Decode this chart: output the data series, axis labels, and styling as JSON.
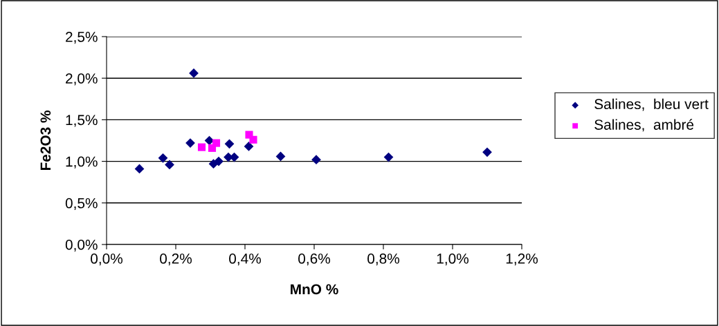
{
  "chart_data": {
    "type": "scatter",
    "xlabel": "MnO %",
    "ylabel": "Fe2O3 %",
    "series": [
      {
        "name": "Salines,  bleu vert",
        "color": "#000080",
        "marker": "diamond",
        "x": [
          0.095,
          0.163,
          0.182,
          0.242,
          0.252,
          0.297,
          0.309,
          0.324,
          0.355,
          0.352,
          0.369,
          0.411,
          0.503,
          0.606,
          0.815,
          1.1
        ],
        "values": [
          0.91,
          1.04,
          0.96,
          1.22,
          2.06,
          1.25,
          0.97,
          1.0,
          1.21,
          1.05,
          1.05,
          1.18,
          1.06,
          1.02,
          1.05,
          1.11
        ]
      },
      {
        "name": "Salines,  ambré",
        "color": "#ff00ff",
        "marker": "square",
        "x": [
          0.275,
          0.305,
          0.317,
          0.412,
          0.424
        ],
        "values": [
          1.17,
          1.16,
          1.22,
          1.32,
          1.26
        ]
      }
    ],
    "xlim": [
      0,
      1.2
    ],
    "xticks": [
      {
        "value": 0,
        "label": "0,0%"
      },
      {
        "value": 0.2,
        "label": "0,2%"
      },
      {
        "value": 0.4,
        "label": "0,4%"
      },
      {
        "value": 0.6,
        "label": "0,6%"
      },
      {
        "value": 0.8,
        "label": "0,8%"
      },
      {
        "value": 1.0,
        "label": "1,0%"
      },
      {
        "value": 1.2,
        "label": "1,2%"
      }
    ],
    "ylim": [
      0,
      2.5
    ],
    "yticks": [
      {
        "value": 0,
        "label": "0,0%"
      },
      {
        "value": 0.5,
        "label": "0,5%"
      },
      {
        "value": 1.0,
        "label": "1,0%"
      },
      {
        "value": 1.5,
        "label": "1,5%"
      },
      {
        "value": 2.0,
        "label": "2,0%"
      },
      {
        "value": 2.5,
        "label": "2,5%"
      }
    ],
    "grid": "y",
    "legend": "right"
  }
}
